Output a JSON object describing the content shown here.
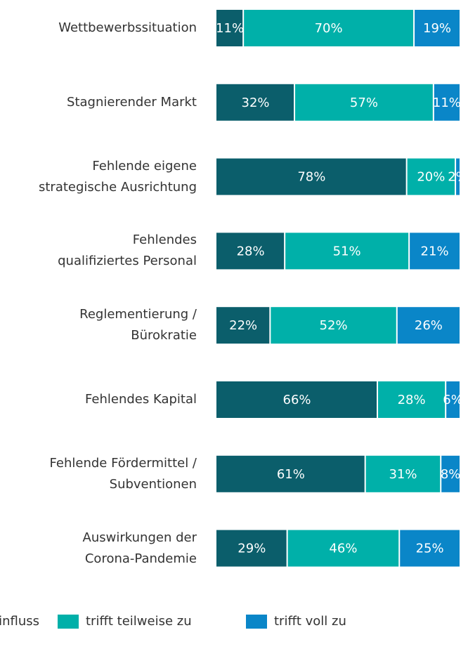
{
  "chart_data": {
    "type": "stacked-bar-horizontal",
    "categories": [
      "Wettbewerbssituation",
      "Stagnierender Markt",
      "Fehlende eigene\nstrategische Ausrichtung",
      "Fehlendes\nqualifiziertes Personal",
      "Reglementierung /\nBürokratie",
      "Fehlendes Kapital",
      "Fehlende Fördermittel /\nSubventionen",
      "Auswirkungen der\nCorona-Pandemie"
    ],
    "series": [
      {
        "name": "kein Einfluss",
        "color": "#0b5e6b",
        "values": [
          11,
          32,
          78,
          28,
          22,
          66,
          61,
          29
        ],
        "value_labels": [
          "11%",
          "32%",
          "78%",
          "28%",
          "22%",
          "66%",
          "61%",
          "29%"
        ]
      },
      {
        "name": "trifft teilweise zu",
        "color": "#00b0a9",
        "values": [
          70,
          57,
          20,
          51,
          52,
          28,
          31,
          46
        ],
        "value_labels": [
          "70%",
          "57%",
          "20%",
          "51%",
          "52%",
          "28%",
          "31%",
          "46%"
        ]
      },
      {
        "name": "trifft voll zu",
        "color": "#0a86c8",
        "values": [
          19,
          11,
          2,
          21,
          26,
          6,
          8,
          25
        ],
        "value_labels": [
          "19%",
          "11%",
          "2%",
          "21%",
          "26%",
          "6%",
          "8%",
          "25%"
        ]
      }
    ],
    "xlim": [
      0,
      100
    ],
    "legend": "bottom"
  }
}
